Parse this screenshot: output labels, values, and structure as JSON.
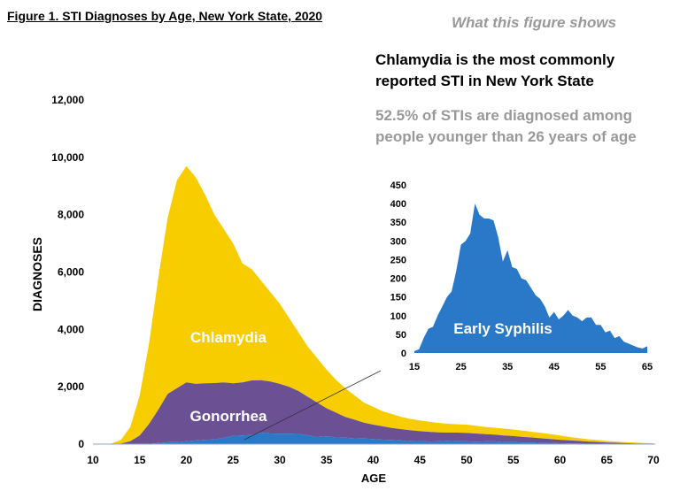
{
  "header": {
    "title": "Figure 1. STI Diagnoses by Age, New York State, 2020",
    "what_label": "What this figure shows",
    "message_1": "Chlamydia is the most commonly reported STI in New York State",
    "message_2": "52.5% of STIs are diagnosed among people younger than 26 years of age"
  },
  "chart_data": [
    {
      "type": "area",
      "stacked": true,
      "xlabel": "AGE",
      "ylabel": "DIAGNOSES",
      "xlim": [
        10,
        70
      ],
      "ylim": [
        0,
        12000
      ],
      "x_ticks": [
        "10",
        "15",
        "20",
        "25",
        "30",
        "35",
        "40",
        "45",
        "50",
        "55",
        "60",
        "65",
        "70"
      ],
      "y_ticks": [
        "0",
        "2,000",
        "4,000",
        "6,000",
        "8,000",
        "10,000",
        "12,000"
      ],
      "grid": false,
      "x_start": 10,
      "series": [
        {
          "name": "Early Syphilis",
          "color": "#2a78c8",
          "label_shown": false,
          "values": [
            0,
            0,
            0,
            0,
            2,
            5,
            10,
            40,
            65,
            70,
            100,
            125,
            150,
            165,
            220,
            290,
            300,
            320,
            400,
            370,
            360,
            360,
            355,
            310,
            245,
            275,
            230,
            225,
            200,
            195,
            175,
            155,
            145,
            125,
            95,
            110,
            90,
            100,
            115,
            100,
            95,
            85,
            95,
            95,
            75,
            75,
            55,
            60,
            40,
            45,
            30,
            25,
            20,
            15,
            12,
            18,
            10,
            8,
            6,
            5,
            4
          ]
        },
        {
          "name": "Gonorrhea",
          "color": "#6b5194",
          "values": [
            0,
            0,
            5,
            20,
            98,
            295,
            690,
            1160,
            1685,
            1880,
            2050,
            1975,
            1970,
            1965,
            1930,
            1830,
            1850,
            1900,
            1830,
            1810,
            1740,
            1640,
            1495,
            1340,
            1205,
            975,
            870,
            725,
            650,
            555,
            505,
            465,
            415,
            395,
            385,
            340,
            340,
            310,
            285,
            300,
            295,
            285,
            255,
            235,
            225,
            205,
            195,
            170,
            160,
            135,
            120,
            105,
            90,
            75,
            63,
            42,
            35,
            27,
            19,
            15,
            11
          ]
        },
        {
          "name": "Chlamydia",
          "color": "#f7cd00",
          "values": [
            0,
            0,
            15,
            130,
            500,
            1400,
            2800,
            4600,
            6150,
            7250,
            7550,
            7200,
            6580,
            5870,
            5350,
            4880,
            4150,
            3880,
            3470,
            3120,
            2800,
            2400,
            2050,
            1750,
            1550,
            1350,
            1150,
            1000,
            850,
            700,
            620,
            530,
            490,
            430,
            400,
            370,
            350,
            330,
            310,
            290,
            290,
            270,
            250,
            240,
            240,
            230,
            220,
            200,
            190,
            170,
            150,
            120,
            100,
            80,
            65,
            50,
            45,
            35,
            30,
            20,
            15
          ]
        }
      ]
    },
    {
      "type": "area",
      "inset": true,
      "series_name": "Early Syphilis",
      "color": "#2a78c8",
      "xlim": [
        15,
        65
      ],
      "ylim": [
        0,
        450
      ],
      "x_ticks": [
        "15",
        "25",
        "35",
        "45",
        "55",
        "65"
      ],
      "y_ticks": [
        "0",
        "50",
        "100",
        "150",
        "200",
        "250",
        "300",
        "350",
        "400",
        "450"
      ],
      "x_start": 15,
      "values": [
        5,
        10,
        40,
        65,
        70,
        100,
        125,
        150,
        165,
        220,
        290,
        300,
        320,
        400,
        370,
        360,
        360,
        355,
        310,
        245,
        275,
        230,
        225,
        200,
        195,
        175,
        155,
        145,
        125,
        95,
        110,
        90,
        100,
        115,
        100,
        95,
        85,
        95,
        95,
        75,
        75,
        55,
        60,
        40,
        45,
        30,
        25,
        20,
        15,
        12,
        18
      ]
    }
  ]
}
